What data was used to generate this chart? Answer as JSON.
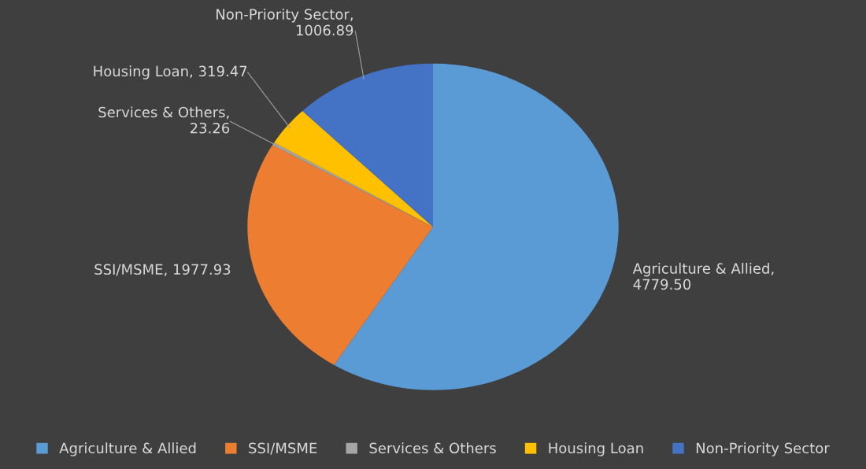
{
  "chart_data": {
    "type": "pie",
    "categories": [
      "Agriculture & Allied",
      "SSI/MSME",
      "Services & Others",
      "Housing Loan",
      "Non-Priority Sector"
    ],
    "values": [
      4779.5,
      1977.93,
      23.26,
      319.47,
      1006.89
    ],
    "value_labels": [
      "Agriculture & Allied,\n4779.50",
      "SSI/MSME, 1977.93",
      "Services & Others,\n23.26",
      "Housing Loan, 319.47",
      "Non-Priority Sector,\n1006.89"
    ],
    "colors": [
      "#5b9bd5",
      "#ed7d31",
      "#a5a5a5",
      "#ffc000",
      "#4472c4"
    ],
    "legend": "bottom"
  }
}
